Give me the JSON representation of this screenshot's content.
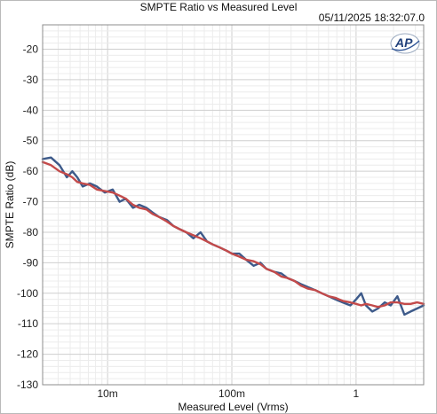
{
  "chart_data": {
    "type": "line",
    "title": "SMPTE Ratio vs Measured Level",
    "timestamp": "05/11/2025 18:32:07.0",
    "xlabel": "Measured Level (Vrms)",
    "ylabel": "SMPTE Ratio (dB)",
    "x_scale": "log",
    "xlim": [
      0.003,
      3.5
    ],
    "ylim": [
      -130,
      -12
    ],
    "grid": true,
    "legend": "none",
    "x_ticks": [
      {
        "value": 0.01,
        "label": "10m"
      },
      {
        "value": 0.1,
        "label": "100m"
      },
      {
        "value": 1,
        "label": "1"
      }
    ],
    "y_ticks": [
      {
        "value": -20,
        "label": "-20"
      },
      {
        "value": -30,
        "label": "-30"
      },
      {
        "value": -40,
        "label": "-40"
      },
      {
        "value": -50,
        "label": "-50"
      },
      {
        "value": -60,
        "label": "-60"
      },
      {
        "value": -70,
        "label": "-70"
      },
      {
        "value": -80,
        "label": "-80"
      },
      {
        "value": -90,
        "label": "-90"
      },
      {
        "value": -100,
        "label": "-100"
      },
      {
        "value": -110,
        "label": "-110"
      },
      {
        "value": -120,
        "label": "-120"
      },
      {
        "value": -130,
        "label": "-130"
      }
    ],
    "series": [
      {
        "color": "#3d5a8a",
        "x": [
          0.003,
          0.0035,
          0.0041,
          0.0047,
          0.0052,
          0.0057,
          0.0063,
          0.0072,
          0.0082,
          0.0095,
          0.011,
          0.0125,
          0.014,
          0.016,
          0.018,
          0.0205,
          0.023,
          0.026,
          0.03,
          0.034,
          0.038,
          0.043,
          0.049,
          0.056,
          0.063,
          0.07,
          0.08,
          0.09,
          0.1,
          0.115,
          0.13,
          0.15,
          0.17,
          0.19,
          0.22,
          0.25,
          0.28,
          0.32,
          0.36,
          0.41,
          0.47,
          0.53,
          0.6,
          0.68,
          0.78,
          0.9,
          1.0,
          1.1,
          1.2,
          1.35,
          1.5,
          1.7,
          1.9,
          2.15,
          2.45,
          2.75,
          3.1,
          3.5
        ],
        "y": [
          -56,
          -55.5,
          -58,
          -62,
          -60,
          -62,
          -65,
          -64,
          -65,
          -67,
          -66,
          -70,
          -69,
          -72,
          -71,
          -72,
          -73.5,
          -75,
          -76,
          -78,
          -79,
          -80,
          -82,
          -80,
          -83,
          -84,
          -85,
          -86,
          -87,
          -87,
          -89,
          -91,
          -90,
          -92,
          -93,
          -93.5,
          -95,
          -96,
          -97,
          -98,
          -99,
          -100,
          -101,
          -102,
          -103,
          -104,
          -102,
          -100,
          -104,
          -106,
          -105,
          -103,
          -104,
          -101,
          -107,
          -106,
          -105,
          -104
        ]
      },
      {
        "color": "#c34a4a",
        "x": [
          0.003,
          0.0035,
          0.0041,
          0.0047,
          0.0052,
          0.0057,
          0.0063,
          0.0072,
          0.0082,
          0.0095,
          0.011,
          0.0125,
          0.014,
          0.016,
          0.018,
          0.0205,
          0.023,
          0.026,
          0.03,
          0.034,
          0.038,
          0.043,
          0.049,
          0.056,
          0.063,
          0.07,
          0.08,
          0.09,
          0.1,
          0.115,
          0.13,
          0.15,
          0.17,
          0.19,
          0.22,
          0.25,
          0.28,
          0.32,
          0.36,
          0.41,
          0.47,
          0.53,
          0.6,
          0.68,
          0.78,
          0.9,
          1.0,
          1.1,
          1.2,
          1.35,
          1.5,
          1.7,
          1.9,
          2.15,
          2.45,
          2.75,
          3.1,
          3.5
        ],
        "y": [
          -57,
          -58,
          -60,
          -61,
          -62,
          -63.5,
          -64,
          -64.5,
          -66,
          -66.5,
          -67,
          -68,
          -69,
          -71,
          -72,
          -72.5,
          -74,
          -75,
          -76.5,
          -78,
          -79,
          -80,
          -81,
          -82,
          -83,
          -84,
          -85,
          -86,
          -87,
          -88,
          -89,
          -89.5,
          -90.5,
          -92,
          -93,
          -94.5,
          -95,
          -96,
          -97.5,
          -98.5,
          -99,
          -100,
          -101,
          -101.5,
          -102.5,
          -103,
          -103.5,
          -104,
          -103.5,
          -104,
          -104.5,
          -104,
          -103,
          -103,
          -103.5,
          -103.5,
          -103,
          -103.5
        ]
      }
    ]
  }
}
